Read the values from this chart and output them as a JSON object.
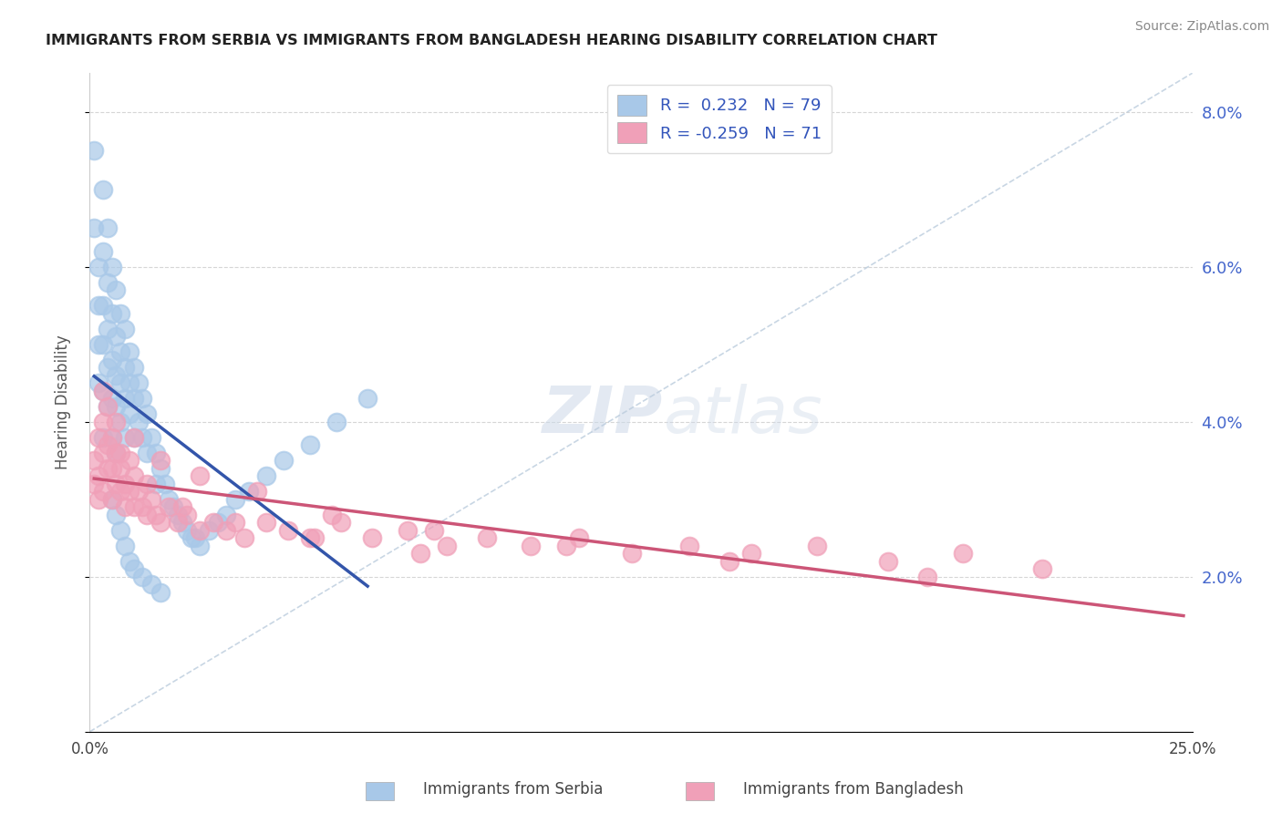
{
  "title": "IMMIGRANTS FROM SERBIA VS IMMIGRANTS FROM BANGLADESH HEARING DISABILITY CORRELATION CHART",
  "source": "Source: ZipAtlas.com",
  "ylabel": "Hearing Disability",
  "xlim": [
    0.0,
    0.25
  ],
  "ylim": [
    0.0,
    0.085
  ],
  "yticks": [
    0.0,
    0.02,
    0.04,
    0.06,
    0.08
  ],
  "serbia_color": "#a8c8e8",
  "serbia_line_color": "#3355aa",
  "bangladesh_color": "#f0a0b8",
  "bangladesh_line_color": "#cc5577",
  "R_serbia": 0.232,
  "N_serbia": 79,
  "R_bangladesh": -0.259,
  "N_bangladesh": 71,
  "background_color": "#ffffff",
  "serbia_x": [
    0.001,
    0.001,
    0.002,
    0.002,
    0.002,
    0.002,
    0.003,
    0.003,
    0.003,
    0.003,
    0.003,
    0.003,
    0.004,
    0.004,
    0.004,
    0.004,
    0.004,
    0.005,
    0.005,
    0.005,
    0.005,
    0.005,
    0.006,
    0.006,
    0.006,
    0.006,
    0.006,
    0.007,
    0.007,
    0.007,
    0.007,
    0.008,
    0.008,
    0.008,
    0.008,
    0.009,
    0.009,
    0.009,
    0.01,
    0.01,
    0.01,
    0.011,
    0.011,
    0.012,
    0.012,
    0.013,
    0.013,
    0.014,
    0.015,
    0.015,
    0.016,
    0.017,
    0.018,
    0.019,
    0.02,
    0.021,
    0.022,
    0.023,
    0.024,
    0.025,
    0.027,
    0.029,
    0.031,
    0.033,
    0.036,
    0.04,
    0.044,
    0.05,
    0.056,
    0.063,
    0.005,
    0.006,
    0.007,
    0.008,
    0.009,
    0.01,
    0.012,
    0.014,
    0.016
  ],
  "serbia_y": [
    0.075,
    0.065,
    0.06,
    0.055,
    0.05,
    0.045,
    0.07,
    0.062,
    0.055,
    0.05,
    0.044,
    0.038,
    0.065,
    0.058,
    0.052,
    0.047,
    0.042,
    0.06,
    0.054,
    0.048,
    0.043,
    0.038,
    0.057,
    0.051,
    0.046,
    0.042,
    0.036,
    0.054,
    0.049,
    0.045,
    0.04,
    0.052,
    0.047,
    0.043,
    0.038,
    0.049,
    0.045,
    0.041,
    0.047,
    0.043,
    0.038,
    0.045,
    0.04,
    0.043,
    0.038,
    0.041,
    0.036,
    0.038,
    0.036,
    0.032,
    0.034,
    0.032,
    0.03,
    0.029,
    0.028,
    0.027,
    0.026,
    0.025,
    0.025,
    0.024,
    0.026,
    0.027,
    0.028,
    0.03,
    0.031,
    0.033,
    0.035,
    0.037,
    0.04,
    0.043,
    0.03,
    0.028,
    0.026,
    0.024,
    0.022,
    0.021,
    0.02,
    0.019,
    0.018
  ],
  "bangladesh_x": [
    0.001,
    0.001,
    0.002,
    0.002,
    0.002,
    0.003,
    0.003,
    0.003,
    0.004,
    0.004,
    0.004,
    0.005,
    0.005,
    0.005,
    0.006,
    0.006,
    0.007,
    0.007,
    0.008,
    0.008,
    0.009,
    0.009,
    0.01,
    0.01,
    0.011,
    0.012,
    0.013,
    0.014,
    0.015,
    0.016,
    0.018,
    0.02,
    0.022,
    0.025,
    0.028,
    0.031,
    0.035,
    0.04,
    0.045,
    0.051,
    0.057,
    0.064,
    0.072,
    0.081,
    0.09,
    0.1,
    0.111,
    0.123,
    0.136,
    0.15,
    0.165,
    0.181,
    0.198,
    0.216,
    0.003,
    0.006,
    0.01,
    0.016,
    0.025,
    0.038,
    0.055,
    0.078,
    0.108,
    0.145,
    0.19,
    0.007,
    0.013,
    0.021,
    0.033,
    0.05,
    0.075
  ],
  "bangladesh_y": [
    0.035,
    0.032,
    0.038,
    0.033,
    0.03,
    0.04,
    0.036,
    0.031,
    0.042,
    0.037,
    0.034,
    0.038,
    0.034,
    0.03,
    0.036,
    0.032,
    0.034,
    0.031,
    0.032,
    0.029,
    0.035,
    0.031,
    0.033,
    0.029,
    0.031,
    0.029,
    0.028,
    0.03,
    0.028,
    0.027,
    0.029,
    0.027,
    0.028,
    0.026,
    0.027,
    0.026,
    0.025,
    0.027,
    0.026,
    0.025,
    0.027,
    0.025,
    0.026,
    0.024,
    0.025,
    0.024,
    0.025,
    0.023,
    0.024,
    0.023,
    0.024,
    0.022,
    0.023,
    0.021,
    0.044,
    0.04,
    0.038,
    0.035,
    0.033,
    0.031,
    0.028,
    0.026,
    0.024,
    0.022,
    0.02,
    0.036,
    0.032,
    0.029,
    0.027,
    0.025,
    0.023
  ]
}
